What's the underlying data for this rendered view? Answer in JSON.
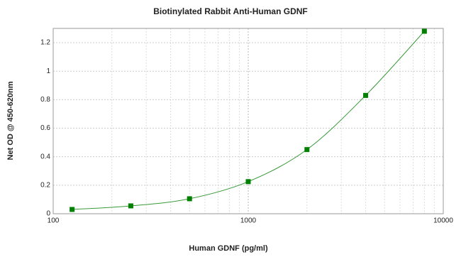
{
  "chart_data": {
    "type": "scatter",
    "title": "Biotinylated Rabbit Anti-Human GDNF",
    "x_label": "Human GDNF (pg/ml)",
    "y_label": "Net OD @ 450-620nm",
    "series": [
      {
        "color": "#008000",
        "x": [
          125,
          250,
          500,
          1000,
          2000,
          4000,
          8000
        ],
        "values": [
          0.03,
          0.055,
          0.105,
          0.225,
          0.45,
          0.83,
          1.28
        ]
      }
    ],
    "x_log": true,
    "xlim": [
      100,
      10000
    ],
    "xticks": [
      100,
      1000,
      10000
    ],
    "ylim": [
      0,
      1.3
    ],
    "yticks": [
      0,
      0.2,
      0.4,
      0.6,
      0.8,
      1,
      1.2
    ],
    "grid": true
  }
}
